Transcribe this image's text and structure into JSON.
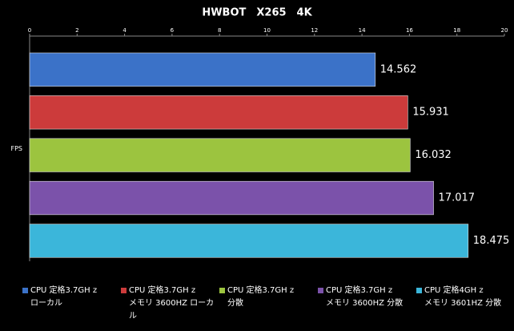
{
  "chart_data": {
    "type": "bar",
    "orientation": "horizontal",
    "title": "HWBOT　X265　4K",
    "categories": [
      "FPS"
    ],
    "xlim": [
      0,
      20
    ],
    "xticks": [
      0,
      2,
      4,
      6,
      8,
      10,
      12,
      14,
      16,
      18,
      20
    ],
    "grid": false,
    "series": [
      {
        "name": "CPU 定格3.7GH z\nローカル",
        "color": "#3b72c8",
        "values": [
          14.562
        ]
      },
      {
        "name": "CPU 定格3.7GH z\nメモリ 3600HZ ローカル",
        "color": "#cc3b3b",
        "values": [
          15.931
        ]
      },
      {
        "name": "CPU 定格3.7GH z\n分散",
        "color": "#9cc43f",
        "values": [
          16.032
        ]
      },
      {
        "name": "CPU 定格3.7GH z\nメモリ 3600HZ 分散",
        "color": "#7b52aa",
        "values": [
          17.017
        ]
      },
      {
        "name": "CPU 定格4GH z\nメモリ 3601HZ 分散",
        "color": "#3bb6da",
        "values": [
          18.475
        ]
      }
    ]
  }
}
